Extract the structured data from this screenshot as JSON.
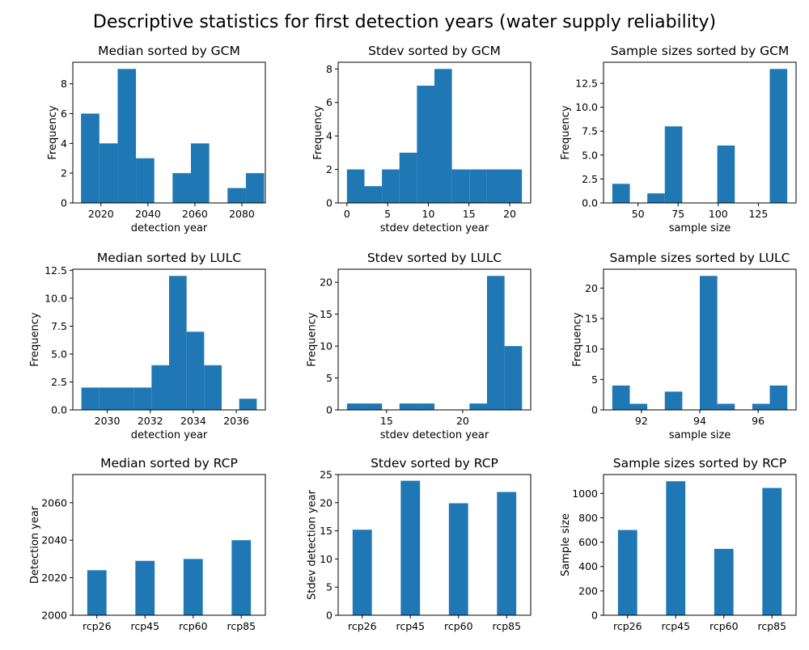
{
  "figure_title": "Descriptive statistics for first detection years (water supply reliability)",
  "chart_data": [
    {
      "type": "bar",
      "title": "Median sorted by GCM",
      "xlabel": "detection year",
      "ylabel": "Frequency",
      "x": [
        2011.5,
        2019.3,
        2027.1,
        2034.9,
        2042.7,
        2050.5,
        2058.3,
        2066.1,
        2073.9,
        2081.7
      ],
      "width": 7.8,
      "values": [
        6,
        4,
        9,
        3,
        0,
        2,
        4,
        0,
        1,
        2
      ],
      "xlim": [
        2008,
        2090
      ],
      "ylim": [
        0,
        9.45
      ],
      "xticks": [
        2020,
        2040,
        2060,
        2080
      ],
      "xtick_labels": [
        "2020",
        "2040",
        "2060",
        "2080"
      ],
      "yticks": [
        0,
        2,
        4,
        6,
        8
      ],
      "ytick_labels": [
        "0",
        "2",
        "4",
        "6",
        "8"
      ]
    },
    {
      "type": "bar",
      "title": "Stdev sorted by GCM",
      "xlabel": "stdev detection year",
      "ylabel": "Frequency",
      "x": [
        0,
        2.15,
        4.3,
        6.45,
        8.6,
        10.75,
        12.9,
        15.05,
        17.2,
        19.35
      ],
      "width": 2.15,
      "values": [
        2,
        1,
        2,
        3,
        7,
        8,
        2,
        2,
        2,
        2
      ],
      "xlim": [
        -1.08,
        22.58
      ],
      "ylim": [
        0,
        8.4
      ],
      "xticks": [
        0,
        5,
        10,
        15,
        20
      ],
      "xtick_labels": [
        "0",
        "5",
        "10",
        "15",
        "20"
      ],
      "yticks": [
        0,
        2,
        4,
        6,
        8
      ],
      "ytick_labels": [
        "0",
        "2",
        "4",
        "6",
        "8"
      ]
    },
    {
      "type": "bar",
      "title": "Sample sizes sorted by GCM",
      "xlabel": "sample size",
      "ylabel": "Frequency",
      "x": [
        34,
        44.9,
        55.8,
        66.7,
        77.6,
        88.5,
        99.4,
        110.3,
        121.2,
        132.1
      ],
      "width": 10.9,
      "values": [
        2,
        0,
        1,
        8,
        0,
        0,
        6,
        0,
        0,
        14
      ],
      "xlim": [
        28.5,
        148.5
      ],
      "ylim": [
        0,
        14.7
      ],
      "xticks": [
        50,
        75,
        100,
        125
      ],
      "xtick_labels": [
        "50",
        "75",
        "100",
        "125"
      ],
      "yticks": [
        0,
        2.5,
        5,
        7.5,
        10,
        12.5
      ],
      "ytick_labels": [
        "0.0",
        "2.5",
        "5.0",
        "7.5",
        "10.0",
        "12.5"
      ]
    },
    {
      "type": "bar",
      "title": "Median sorted by LULC",
      "xlabel": "detection year",
      "ylabel": "Frequency",
      "x": [
        2028.8,
        2029.615,
        2030.43,
        2031.245,
        2032.06,
        2032.875,
        2033.69,
        2034.505,
        2035.32,
        2036.135
      ],
      "width": 0.815,
      "values": [
        2,
        2,
        2,
        2,
        4,
        12,
        7,
        4,
        0,
        1
      ],
      "xlim": [
        2028.4,
        2037.35
      ],
      "ylim": [
        0,
        12.6
      ],
      "xticks": [
        2030,
        2032,
        2034,
        2036
      ],
      "xtick_labels": [
        "2030",
        "2032",
        "2034",
        "2036"
      ],
      "yticks": [
        0,
        2.5,
        5,
        7.5,
        10,
        12.5
      ],
      "ytick_labels": [
        "0.0",
        "2.5",
        "5.0",
        "7.5",
        "10.0",
        "12.5"
      ]
    },
    {
      "type": "bar",
      "title": "Stdev sorted by LULC",
      "xlabel": "stdev detection year",
      "ylabel": "Frequency",
      "x": [
        12.4,
        13.55,
        14.7,
        15.85,
        17,
        18.15,
        19.3,
        20.45,
        21.6,
        22.75
      ],
      "width": 1.15,
      "values": [
        1,
        1,
        0,
        1,
        1,
        0,
        0,
        1,
        21,
        10
      ],
      "xlim": [
        11.82,
        24.47
      ],
      "ylim": [
        0,
        22.05
      ],
      "xticks": [
        15,
        20
      ],
      "xtick_labels": [
        "15",
        "20"
      ],
      "yticks": [
        0,
        5,
        10,
        15,
        20
      ],
      "ytick_labels": [
        "0",
        "5",
        "10",
        "15",
        "20"
      ]
    },
    {
      "type": "bar",
      "title": "Sample sizes sorted by LULC",
      "xlabel": "sample size",
      "ylabel": "Frequency",
      "x": [
        91,
        91.6,
        92.2,
        92.8,
        93.4,
        94,
        94.6,
        95.2,
        95.8,
        96.4
      ],
      "width": 0.6,
      "values": [
        4,
        1,
        0,
        3,
        0,
        22,
        1,
        0,
        1,
        4
      ],
      "xlim": [
        90.7,
        97.3
      ],
      "ylim": [
        0,
        23.1
      ],
      "xticks": [
        92,
        94,
        96
      ],
      "xtick_labels": [
        "92",
        "94",
        "96"
      ],
      "yticks": [
        0,
        5,
        10,
        15,
        20
      ],
      "ytick_labels": [
        "0",
        "5",
        "10",
        "15",
        "20"
      ]
    },
    {
      "type": "bar",
      "title": "Median sorted by RCP",
      "xlabel": "",
      "ylabel": "Detection year",
      "categories": [
        "rcp26",
        "rcp45",
        "rcp60",
        "rcp85"
      ],
      "values": [
        2024,
        2029,
        2030,
        2040
      ],
      "ylim": [
        2000,
        2075
      ],
      "yticks": [
        2000,
        2020,
        2040,
        2060
      ],
      "ytick_labels": [
        "2000",
        "2020",
        "2040",
        "2060"
      ]
    },
    {
      "type": "bar",
      "title": "Stdev sorted by RCP",
      "xlabel": "",
      "ylabel": "Stdev detection year",
      "categories": [
        "rcp26",
        "rcp45",
        "rcp60",
        "rcp85"
      ],
      "values": [
        15.2,
        23.9,
        19.9,
        21.9
      ],
      "ylim": [
        0,
        25
      ],
      "yticks": [
        0,
        5,
        10,
        15,
        20,
        25
      ],
      "ytick_labels": [
        "0",
        "5",
        "10",
        "15",
        "20",
        "25"
      ]
    },
    {
      "type": "bar",
      "title": "Sample sizes sorted by RCP",
      "xlabel": "",
      "ylabel": "Sample size",
      "categories": [
        "rcp26",
        "rcp45",
        "rcp60",
        "rcp85"
      ],
      "values": [
        700,
        1100,
        545,
        1045
      ],
      "ylim": [
        0,
        1155
      ],
      "yticks": [
        0,
        200,
        400,
        600,
        800,
        1000
      ],
      "ytick_labels": [
        "0",
        "200",
        "400",
        "600",
        "800",
        "1000"
      ]
    }
  ]
}
